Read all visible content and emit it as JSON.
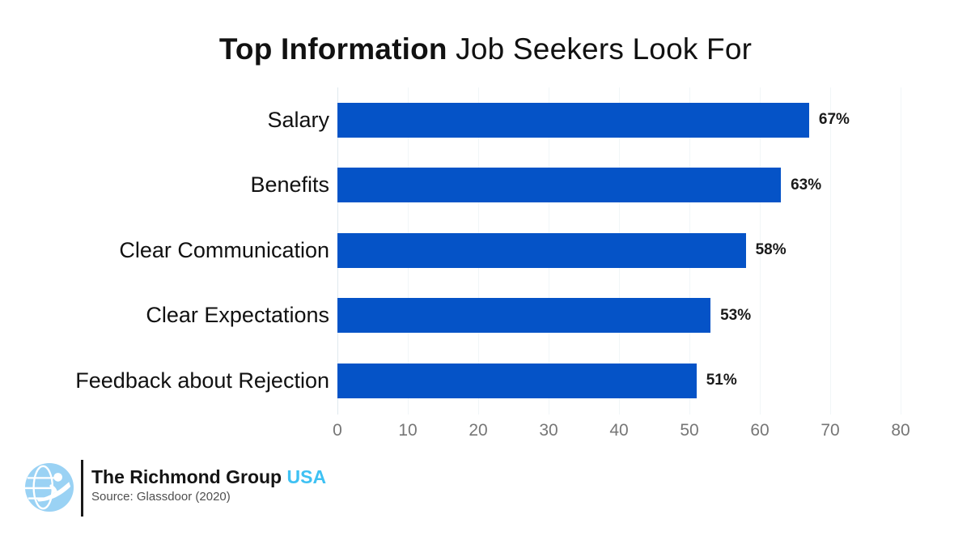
{
  "title": {
    "bold": "Top Information",
    "regular": "Job Seekers Look For"
  },
  "chart_data": {
    "type": "bar",
    "orientation": "horizontal",
    "title": "Top Information Job Seekers Look For",
    "categories": [
      "Salary",
      "Benefits",
      "Clear Communication",
      "Clear Expectations",
      "Feedback about Rejection"
    ],
    "values": [
      67,
      63,
      58,
      53,
      51
    ],
    "value_labels": [
      "67%",
      "63%",
      "58%",
      "53%",
      "51%"
    ],
    "xlabel": "",
    "ylabel": "",
    "xlim": [
      0,
      80
    ],
    "x_ticks": [
      0,
      10,
      20,
      30,
      40,
      50,
      60,
      70,
      80
    ],
    "grid": true,
    "legend_position": "none",
    "bar_color": "#0553C7"
  },
  "footer": {
    "brand_name": "The Richmond Group",
    "brand_suffix": "USA",
    "source": "Source: Glassdoor (2020)",
    "logo_icon": "globe-person-icon"
  },
  "colors": {
    "bar_blue": "#0553C7",
    "brand_suffix_blue": "#3EC1F3",
    "logo_blue": "#9AD2F4",
    "tick_gray": "#767676",
    "gridline": "#f1f6f8",
    "axis_line": "#dfe8ee",
    "title_text": "#111111"
  }
}
